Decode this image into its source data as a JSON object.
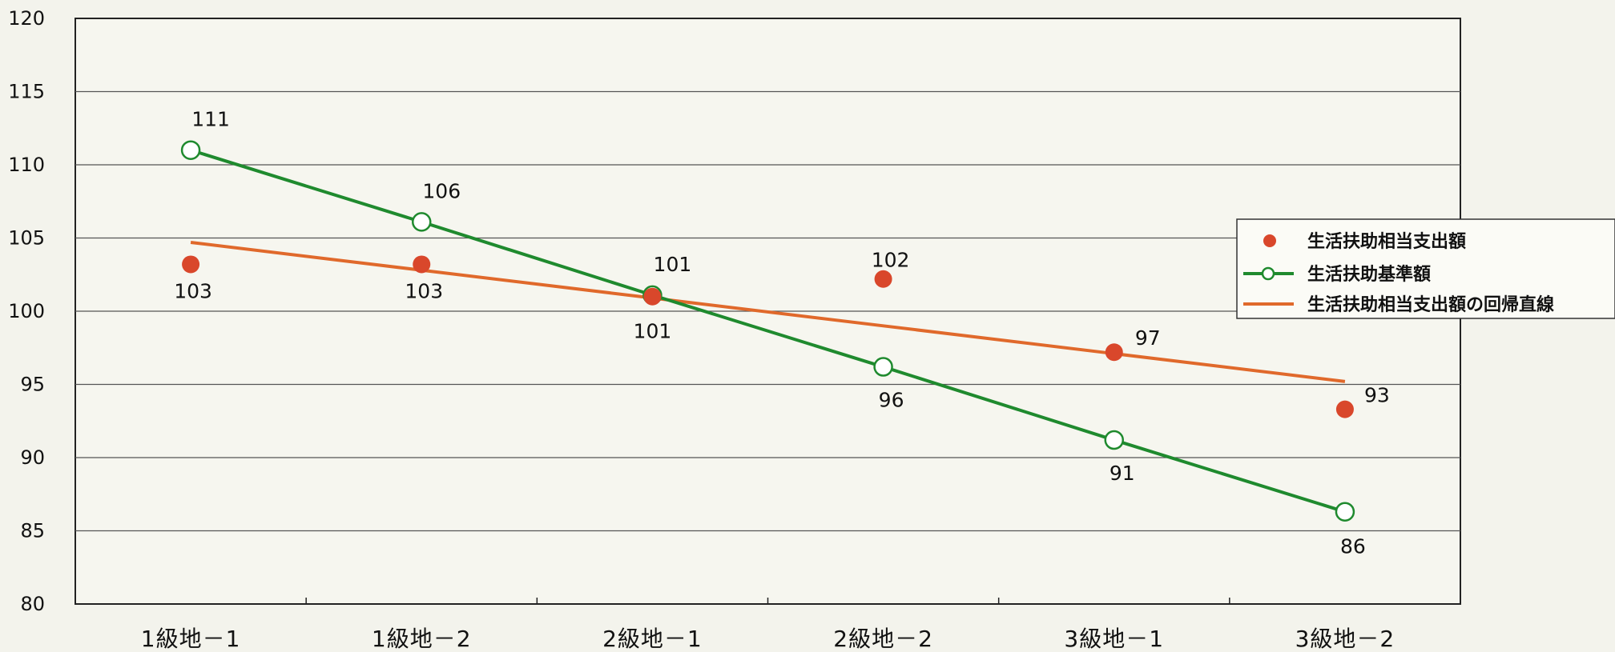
{
  "chart_data": {
    "type": "line",
    "categories": [
      "1級地－1",
      "1級地－2",
      "2級地－1",
      "2級地－2",
      "3級地－1",
      "3級地－2"
    ],
    "ylim": [
      80,
      120
    ],
    "yticks": [
      80,
      85,
      90,
      95,
      100,
      105,
      110,
      115,
      120
    ],
    "grid": true,
    "legend_position": "right",
    "series": [
      {
        "name": "生活扶助相当支出額",
        "kind": "scatter",
        "color": "#d9472b",
        "values": [
          103.2,
          103.2,
          101,
          102.2,
          97.2,
          93.3
        ],
        "labels": [
          "103",
          "103",
          "101",
          "102",
          "97",
          "93"
        ]
      },
      {
        "name": "生活扶助基準額",
        "kind": "line-marker",
        "color": "#1f8a2e",
        "values": [
          111,
          106.1,
          101.1,
          96.2,
          91.2,
          86.3
        ],
        "labels": [
          "111",
          "106",
          "101",
          "96",
          "91",
          "86"
        ]
      },
      {
        "name": "生活扶助相当支出額の回帰直線",
        "kind": "line",
        "color": "#e0692b",
        "values": [
          104.7,
          102.8,
          100.9,
          99.0,
          97.1,
          95.2
        ]
      }
    ]
  }
}
